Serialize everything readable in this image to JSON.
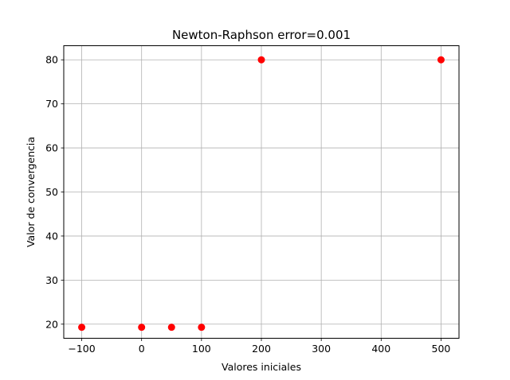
{
  "chart_data": {
    "type": "scatter",
    "title": "Newton-Raphson error=0.001",
    "xlabel": "Valores iniciales",
    "ylabel": "Valor de convergencia",
    "xlim": [
      -130,
      530
    ],
    "ylim": [
      16.8,
      83.2
    ],
    "xticks": [
      -100,
      0,
      100,
      200,
      300,
      400,
      500
    ],
    "xtick_labels": [
      "−100",
      "0",
      "100",
      "200",
      "300",
      "400",
      "500"
    ],
    "yticks": [
      20,
      30,
      40,
      50,
      60,
      70,
      80
    ],
    "ytick_labels": [
      "20",
      "30",
      "40",
      "50",
      "60",
      "70",
      "80"
    ],
    "grid": true,
    "series": [
      {
        "color": "#ff0000",
        "marker": "circle",
        "points": [
          {
            "x": -100,
            "y": 19.3
          },
          {
            "x": 0,
            "y": 19.3
          },
          {
            "x": 50,
            "y": 19.3
          },
          {
            "x": 100,
            "y": 19.3
          },
          {
            "x": 200,
            "y": 80
          },
          {
            "x": 500,
            "y": 80
          }
        ]
      }
    ]
  }
}
